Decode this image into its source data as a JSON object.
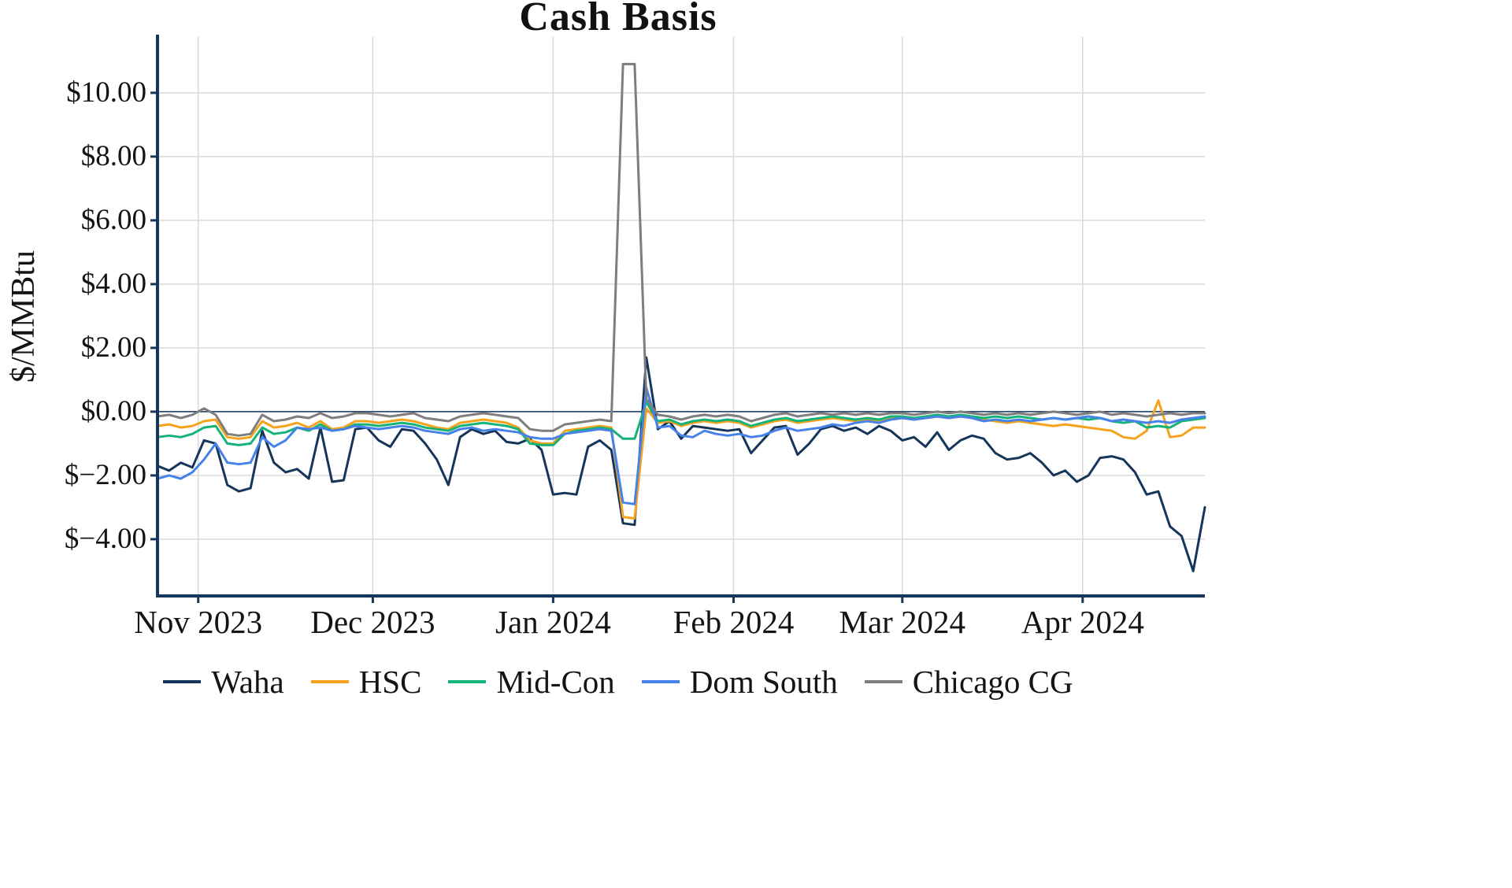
{
  "chart_data": {
    "type": "line",
    "title": "Cash Basis",
    "ylabel": "$/MMBtu",
    "xlabel": "",
    "grid": true,
    "legend_position": "bottom",
    "x_start_date": "2023-10-25",
    "x_end_date": "2024-04-22",
    "x_step_days": 2,
    "xlim_days": [
      0,
      180
    ],
    "ylim": [
      -5.78,
      11.75
    ],
    "colors": {
      "axis": "#17365C",
      "gridline": "#D9D9D9",
      "zero_line": "#17365C",
      "text": "#141414"
    },
    "x_ticks": [
      {
        "label": "Nov 2023",
        "day": 7
      },
      {
        "label": "Dec 2023",
        "day": 37
      },
      {
        "label": "Jan 2024",
        "day": 68
      },
      {
        "label": "Feb 2024",
        "day": 99
      },
      {
        "label": "Mar 2024",
        "day": 128
      },
      {
        "label": "Apr 2024",
        "day": 159
      }
    ],
    "y_ticks": [
      {
        "label": "$10.00",
        "value": 10
      },
      {
        "label": "$8.00",
        "value": 8
      },
      {
        "label": "$6.00",
        "value": 6
      },
      {
        "label": "$4.00",
        "value": 4
      },
      {
        "label": "$2.00",
        "value": 2
      },
      {
        "label": "$0.00",
        "value": 0
      },
      {
        "label": "$−2.00",
        "value": -2
      },
      {
        "label": "$−4.00",
        "value": -4
      }
    ],
    "series": [
      {
        "name": "Waha",
        "color": "#16355B",
        "values": [
          -1.7,
          -1.85,
          -1.6,
          -1.75,
          -0.9,
          -1.0,
          -2.3,
          -2.5,
          -2.4,
          -0.6,
          -1.6,
          -1.9,
          -1.8,
          -2.1,
          -0.5,
          -2.2,
          -2.15,
          -0.55,
          -0.5,
          -0.9,
          -1.1,
          -0.55,
          -0.6,
          -1.0,
          -1.5,
          -2.3,
          -0.8,
          -0.55,
          -0.7,
          -0.6,
          -0.95,
          -1.0,
          -0.85,
          -1.2,
          -2.6,
          -2.55,
          -2.6,
          -1.1,
          -0.9,
          -1.2,
          -3.5,
          -3.55,
          1.7,
          -0.55,
          -0.3,
          -0.85,
          -0.45,
          -0.5,
          -0.55,
          -0.6,
          -0.55,
          -1.3,
          -0.9,
          -0.5,
          -0.45,
          -1.35,
          -1.0,
          -0.55,
          -0.45,
          -0.6,
          -0.5,
          -0.7,
          -0.45,
          -0.6,
          -0.9,
          -0.8,
          -1.1,
          -0.65,
          -1.2,
          -0.9,
          -0.75,
          -0.85,
          -1.3,
          -1.5,
          -1.45,
          -1.3,
          -1.6,
          -2.0,
          -1.85,
          -2.2,
          -2.0,
          -1.45,
          -1.4,
          -1.5,
          -1.9,
          -2.6,
          -2.5,
          -3.6,
          -3.9,
          -5.0,
          -3.0
        ]
      },
      {
        "name": "HSC",
        "color": "#F5A31E",
        "values": [
          -0.45,
          -0.4,
          -0.5,
          -0.45,
          -0.3,
          -0.25,
          -0.8,
          -0.85,
          -0.8,
          -0.3,
          -0.5,
          -0.45,
          -0.35,
          -0.5,
          -0.3,
          -0.55,
          -0.5,
          -0.3,
          -0.3,
          -0.35,
          -0.3,
          -0.25,
          -0.3,
          -0.4,
          -0.5,
          -0.55,
          -0.35,
          -0.3,
          -0.25,
          -0.3,
          -0.35,
          -0.5,
          -0.9,
          -1.0,
          -1.0,
          -0.6,
          -0.55,
          -0.5,
          -0.45,
          -0.5,
          -3.3,
          -3.35,
          0.1,
          -0.35,
          -0.3,
          -0.45,
          -0.35,
          -0.3,
          -0.35,
          -0.3,
          -0.35,
          -0.5,
          -0.4,
          -0.3,
          -0.25,
          -0.35,
          -0.3,
          -0.25,
          -0.2,
          -0.25,
          -0.3,
          -0.25,
          -0.3,
          -0.2,
          -0.2,
          -0.25,
          -0.2,
          -0.15,
          -0.2,
          -0.15,
          -0.2,
          -0.25,
          -0.3,
          -0.35,
          -0.3,
          -0.35,
          -0.4,
          -0.45,
          -0.4,
          -0.45,
          -0.5,
          -0.55,
          -0.6,
          -0.8,
          -0.85,
          -0.6,
          0.35,
          -0.8,
          -0.75,
          -0.5,
          -0.5
        ]
      },
      {
        "name": "Mid-Con",
        "color": "#16B378",
        "values": [
          -0.8,
          -0.75,
          -0.8,
          -0.7,
          -0.5,
          -0.45,
          -1.0,
          -1.05,
          -1.0,
          -0.5,
          -0.7,
          -0.65,
          -0.5,
          -0.6,
          -0.4,
          -0.6,
          -0.55,
          -0.4,
          -0.4,
          -0.45,
          -0.4,
          -0.35,
          -0.4,
          -0.5,
          -0.55,
          -0.6,
          -0.45,
          -0.4,
          -0.35,
          -0.4,
          -0.45,
          -0.55,
          -1.0,
          -1.05,
          -1.05,
          -0.7,
          -0.6,
          -0.55,
          -0.5,
          -0.55,
          -0.85,
          -0.85,
          0.3,
          -0.3,
          -0.25,
          -0.4,
          -0.3,
          -0.25,
          -0.3,
          -0.25,
          -0.3,
          -0.45,
          -0.35,
          -0.25,
          -0.2,
          -0.3,
          -0.25,
          -0.2,
          -0.15,
          -0.2,
          -0.25,
          -0.2,
          -0.25,
          -0.15,
          -0.15,
          -0.2,
          -0.15,
          -0.1,
          -0.15,
          -0.1,
          -0.15,
          -0.2,
          -0.15,
          -0.2,
          -0.15,
          -0.2,
          -0.25,
          -0.2,
          -0.25,
          -0.2,
          -0.25,
          -0.2,
          -0.3,
          -0.35,
          -0.3,
          -0.5,
          -0.45,
          -0.5,
          -0.3,
          -0.25,
          -0.2
        ]
      },
      {
        "name": "Dom South",
        "color": "#4682E8",
        "values": [
          -2.1,
          -2.0,
          -2.1,
          -1.9,
          -1.5,
          -1.0,
          -1.6,
          -1.65,
          -1.6,
          -0.8,
          -1.1,
          -0.9,
          -0.5,
          -0.55,
          -0.5,
          -0.6,
          -0.55,
          -0.45,
          -0.5,
          -0.55,
          -0.5,
          -0.45,
          -0.5,
          -0.6,
          -0.65,
          -0.7,
          -0.55,
          -0.5,
          -0.6,
          -0.55,
          -0.6,
          -0.65,
          -0.8,
          -0.85,
          -0.85,
          -0.7,
          -0.65,
          -0.6,
          -0.55,
          -0.6,
          -2.85,
          -2.9,
          0.75,
          -0.5,
          -0.45,
          -0.75,
          -0.8,
          -0.6,
          -0.7,
          -0.75,
          -0.7,
          -0.8,
          -0.75,
          -0.6,
          -0.5,
          -0.6,
          -0.55,
          -0.5,
          -0.4,
          -0.45,
          -0.35,
          -0.3,
          -0.35,
          -0.25,
          -0.2,
          -0.25,
          -0.2,
          -0.15,
          -0.2,
          -0.15,
          -0.2,
          -0.3,
          -0.25,
          -0.3,
          -0.25,
          -0.3,
          -0.25,
          -0.2,
          -0.25,
          -0.2,
          -0.15,
          -0.2,
          -0.3,
          -0.25,
          -0.3,
          -0.35,
          -0.3,
          -0.35,
          -0.25,
          -0.2,
          -0.15
        ]
      },
      {
        "name": "Chicago CG",
        "color": "#7E7E7E",
        "values": [
          -0.15,
          -0.1,
          -0.2,
          -0.1,
          0.1,
          -0.1,
          -0.7,
          -0.75,
          -0.7,
          -0.1,
          -0.3,
          -0.25,
          -0.15,
          -0.2,
          -0.05,
          -0.2,
          -0.15,
          -0.05,
          -0.05,
          -0.1,
          -0.15,
          -0.1,
          -0.05,
          -0.2,
          -0.25,
          -0.3,
          -0.15,
          -0.1,
          -0.05,
          -0.1,
          -0.15,
          -0.2,
          -0.55,
          -0.6,
          -0.6,
          -0.4,
          -0.35,
          -0.3,
          -0.25,
          -0.3,
          10.9,
          10.9,
          0.4,
          -0.1,
          -0.15,
          -0.25,
          -0.15,
          -0.1,
          -0.15,
          -0.1,
          -0.15,
          -0.3,
          -0.2,
          -0.1,
          -0.05,
          -0.15,
          -0.1,
          -0.05,
          -0.1,
          -0.05,
          -0.1,
          -0.05,
          -0.1,
          -0.05,
          -0.05,
          -0.1,
          -0.05,
          0.0,
          -0.05,
          0.0,
          -0.05,
          -0.1,
          -0.05,
          -0.1,
          -0.05,
          -0.1,
          -0.05,
          0.0,
          -0.05,
          -0.1,
          -0.05,
          0.0,
          -0.1,
          -0.05,
          -0.1,
          -0.15,
          -0.1,
          -0.05,
          -0.1,
          -0.05,
          -0.05
        ]
      }
    ]
  }
}
